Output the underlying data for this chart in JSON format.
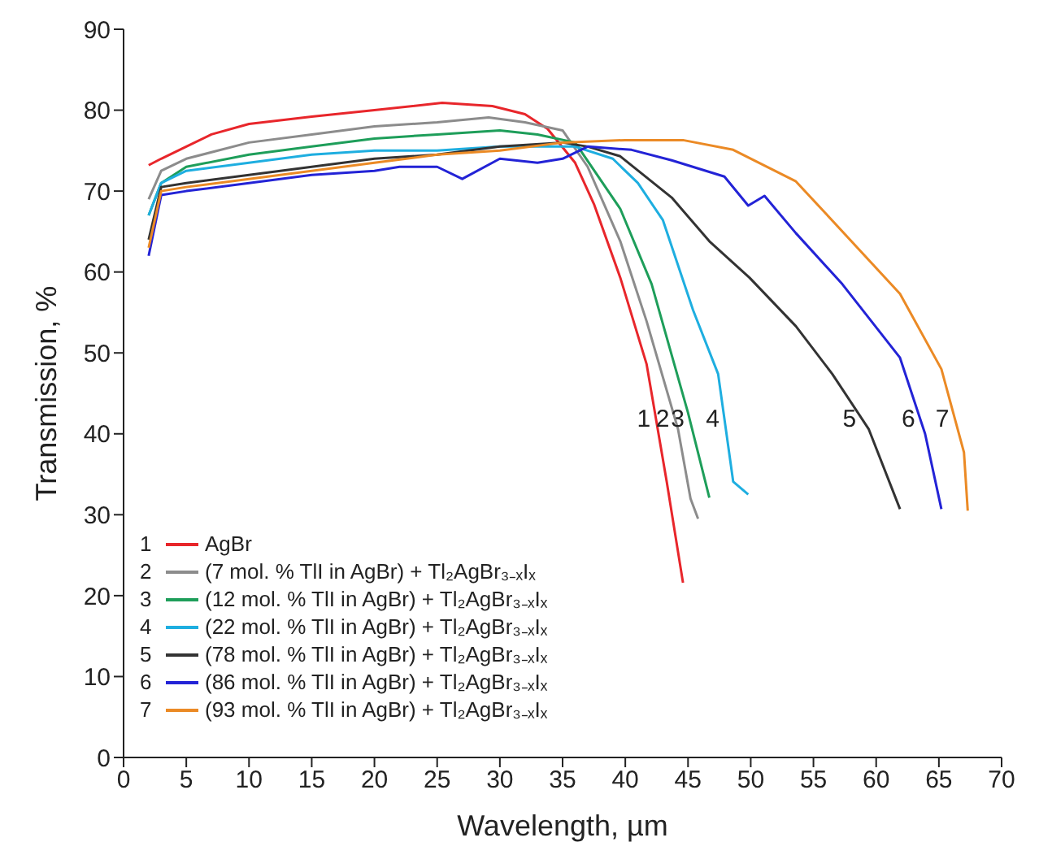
{
  "chart_data": {
    "type": "line",
    "xlabel": "Wavelength, µm",
    "ylabel": "Transmission, %",
    "xlim": [
      0,
      70
    ],
    "xticks": [
      0,
      5,
      10,
      15,
      20,
      25,
      30,
      35,
      40,
      45,
      50,
      55,
      60,
      65,
      70
    ],
    "ylim": [
      0,
      90
    ],
    "yticks": [
      0,
      10,
      20,
      30,
      40,
      50,
      60,
      70,
      80,
      90
    ],
    "grid": false,
    "legend": "bottom left",
    "marker": "none",
    "line_style": "solid",
    "series": [
      {
        "name": "AgBr",
        "color": "#e8262b",
        "x": [
          2,
          3,
          5,
          7,
          10,
          15,
          20,
          25.4,
          29.4,
          32,
          33.8,
          36,
          37.5,
          39.6,
          41.7,
          43.3,
          44.6
        ],
        "values": [
          73.2,
          74,
          75.5,
          77,
          78.3,
          79.2,
          80,
          80.9,
          80.5,
          79.5,
          77.7,
          73.5,
          68.4,
          59.3,
          48.6,
          34.1,
          21.6
        ]
      },
      {
        "name": "(7 mol. % TlI in AgBr) + Tl₂AgBr₃₋ₓIₓ",
        "color": "#8c8c8c",
        "x": [
          2,
          3,
          5,
          10,
          15,
          20,
          25,
          29.1,
          32,
          35,
          37,
          39.6,
          41.7,
          44.2,
          45.2,
          45.8
        ],
        "values": [
          69,
          72.5,
          74,
          76,
          77,
          78,
          78.5,
          79.1,
          78.5,
          77.5,
          73,
          63.8,
          53.9,
          40.6,
          32,
          29.5
        ]
      },
      {
        "name": "(12 mol. % TlI in AgBr) + Tl₂AgBr₃₋ₓIₓ",
        "color": "#1e9e5a",
        "x": [
          2,
          3,
          5,
          10,
          15,
          20,
          25,
          30,
          33,
          36,
          39.6,
          42.1,
          45,
          46.7
        ],
        "values": [
          67,
          71,
          73,
          74.5,
          75.5,
          76.5,
          77,
          77.5,
          77,
          76,
          67.8,
          58.5,
          42.6,
          32.1
        ]
      },
      {
        "name": "(22 mol. % TlI in AgBr) + Tl₂AgBr₃₋ₓIₓ",
        "color": "#1eaee0",
        "x": [
          2,
          3,
          5,
          10,
          15,
          20,
          25,
          30,
          33,
          36,
          39,
          41,
          43,
          45.4,
          47.4,
          48.6,
          49.8
        ],
        "values": [
          67,
          71,
          72.5,
          73.5,
          74.5,
          75,
          75,
          75.5,
          75.5,
          75.5,
          74,
          71,
          66.4,
          55.3,
          47.4,
          34.1,
          32.5
        ]
      },
      {
        "name": "(78 mol. % TlI in AgBr) + Tl₂AgBr₃₋ₓIₓ",
        "color": "#333333",
        "x": [
          2,
          3,
          5,
          10,
          15,
          20,
          25,
          30,
          35,
          37,
          39.6,
          43.7,
          46.7,
          49.9,
          53.6,
          56.5,
          59.4,
          61.9
        ],
        "values": [
          64,
          70.5,
          71,
          72,
          73,
          74,
          74.5,
          75.5,
          76,
          75.5,
          74.3,
          69.2,
          63.8,
          59.3,
          53.3,
          47.4,
          40.6,
          30.7
        ]
      },
      {
        "name": "(86 mol. % TlI in AgBr) + Tl₂AgBr₃₋ₓIₓ",
        "color": "#2323d6",
        "x": [
          2,
          3,
          5,
          10,
          15,
          20,
          22,
          25,
          27,
          30,
          33,
          35,
          37,
          40.5,
          43.7,
          47.9,
          49.8,
          51.1,
          53.6,
          57.3,
          61.9,
          63.9,
          65.2
        ],
        "values": [
          62,
          69.5,
          70,
          71,
          72,
          72.5,
          73,
          73,
          71.5,
          74,
          73.5,
          74,
          75.5,
          75.1,
          73.8,
          71.8,
          68.2,
          69.4,
          64.8,
          58.5,
          49.4,
          40,
          30.7
        ]
      },
      {
        "name": "(93 mol. % TlI in AgBr) + Tl₂AgBr₃₋ₓIₓ",
        "color": "#eb8a25",
        "x": [
          2,
          3,
          5,
          10,
          15,
          20,
          25,
          30,
          35,
          40,
          44.6,
          48.6,
          53.6,
          56,
          61.9,
          65.2,
          67,
          67.3
        ],
        "values": [
          63,
          70,
          70.5,
          71.5,
          72.5,
          73.5,
          74.5,
          75,
          76,
          76.3,
          76.3,
          75.1,
          71.2,
          67.2,
          57.3,
          48,
          37.7,
          30.5
        ]
      }
    ],
    "annotations": [
      {
        "text": "1",
        "x": 42.4,
        "y": 42
      },
      {
        "text": "2",
        "x": 43.9,
        "y": 42
      },
      {
        "text": "3",
        "x": 45.1,
        "y": 42
      },
      {
        "text": "4",
        "x": 47.9,
        "y": 42
      },
      {
        "text": "5",
        "x": 58.8,
        "y": 42
      },
      {
        "text": "6",
        "x": 63.5,
        "y": 42
      },
      {
        "text": "7",
        "x": 66.2,
        "y": 42
      }
    ]
  }
}
